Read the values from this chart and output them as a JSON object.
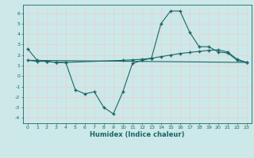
{
  "xlabel": "Humidex (Indice chaleur)",
  "xlim": [
    -0.5,
    23.5
  ],
  "ylim": [
    -4.5,
    6.8
  ],
  "yticks": [
    -4,
    -3,
    -2,
    -1,
    0,
    1,
    2,
    3,
    4,
    5,
    6
  ],
  "xticks": [
    0,
    1,
    2,
    3,
    4,
    5,
    6,
    7,
    8,
    9,
    10,
    11,
    12,
    13,
    14,
    15,
    16,
    17,
    18,
    19,
    20,
    21,
    22,
    23
  ],
  "background_color": "#cce8e8",
  "grid_color": "#b0d4d4",
  "line_color": "#1a6666",
  "line1_x": [
    0,
    1,
    2,
    3,
    4,
    5,
    6,
    7,
    8,
    9,
    10,
    11,
    12,
    13,
    14,
    15,
    16,
    17,
    18,
    19,
    20,
    21,
    22,
    23
  ],
  "line1_y": [
    2.6,
    1.5,
    1.4,
    1.3,
    1.3,
    -1.3,
    -1.7,
    -1.5,
    -3.0,
    -3.6,
    -1.5,
    1.2,
    1.5,
    1.7,
    5.0,
    6.2,
    6.2,
    4.2,
    2.8,
    2.8,
    2.3,
    2.2,
    1.5,
    1.3
  ],
  "line2_x": [
    0,
    1,
    2,
    3,
    4,
    10,
    11,
    12,
    13,
    14,
    15,
    16,
    17,
    18,
    19,
    20,
    21,
    22,
    23
  ],
  "line2_y": [
    1.5,
    1.4,
    1.4,
    1.3,
    1.3,
    1.5,
    1.55,
    1.6,
    1.7,
    1.85,
    2.0,
    2.15,
    2.25,
    2.35,
    2.45,
    2.5,
    2.3,
    1.6,
    1.3
  ],
  "line3_x": [
    0,
    23
  ],
  "line3_y": [
    1.5,
    1.3
  ]
}
